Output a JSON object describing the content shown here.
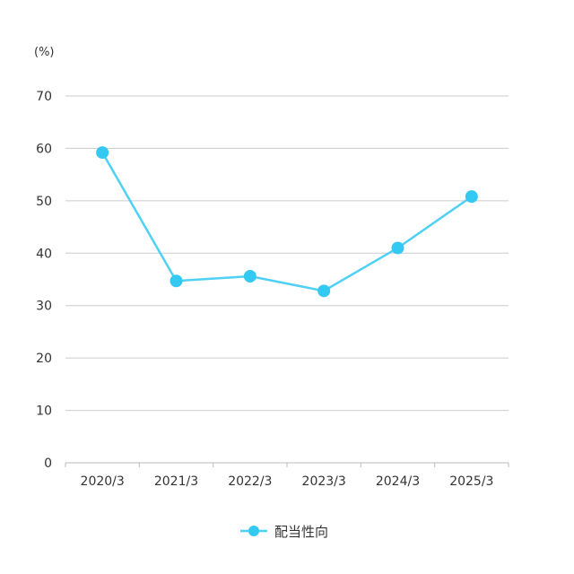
{
  "chart_data": {
    "type": "line",
    "ylabel": "(%)",
    "categories": [
      "2020/3",
      "2021/3",
      "2022/3",
      "2023/3",
      "2024/3",
      "2025/3"
    ],
    "series": [
      {
        "name": "配当性向",
        "values": [
          59.2,
          34.7,
          35.6,
          32.8,
          41.0,
          50.8
        ],
        "color": "#4fd0f5",
        "marker_color": "#34c9f2"
      }
    ],
    "ylim": [
      0,
      70
    ],
    "yticks": [
      0,
      10,
      20,
      30,
      40,
      50,
      60,
      70
    ],
    "grid": true,
    "legend": "bottom-center",
    "colors": {
      "grid": "#cccccc",
      "axis": "#bbbbbb",
      "text": "#333333"
    }
  }
}
